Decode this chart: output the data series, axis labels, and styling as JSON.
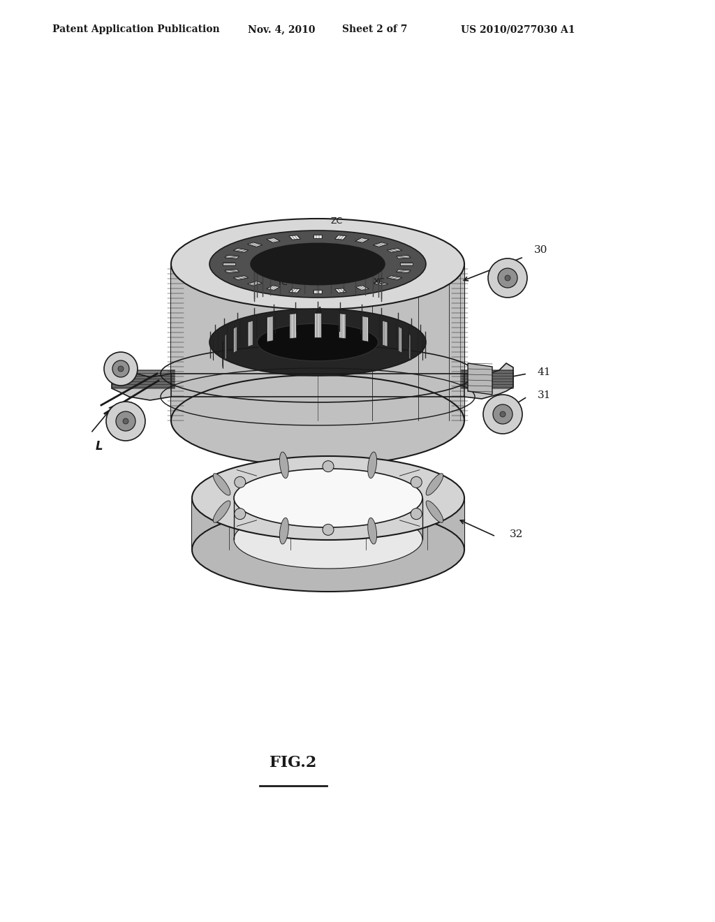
{
  "header_left": "Patent Application Publication",
  "header_mid": "Nov. 4, 2010   Sheet 2 of 7",
  "header_right": "US 2010/0277030 A1",
  "caption": "FIG.2",
  "bg_color": "#ffffff",
  "line_color": "#1a1a1a",
  "fig_width": 10.24,
  "fig_height": 13.2,
  "dpi": 100
}
